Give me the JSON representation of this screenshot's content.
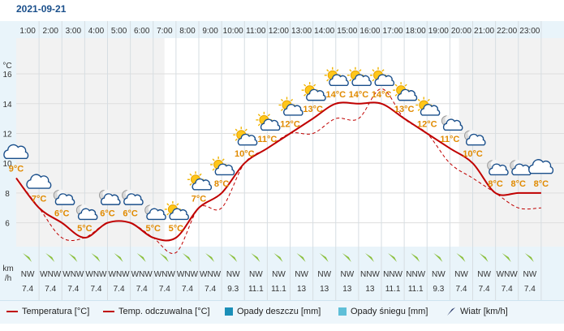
{
  "date": "2021-09-21",
  "colors": {
    "temperature": "#c00000",
    "feels_like": "#c00000",
    "rain": "#1b8fb8",
    "snow": "#5fbfd8",
    "wind": "#223366",
    "night_band": "#f2f2f2",
    "axis_band": "#e9f4fa",
    "temp_label": "#e08a00",
    "arrow": "#8bbf3c"
  },
  "legend": {
    "temperature": "Temperatura [°C]",
    "feels_like": "Temp. odczuwalna [°C]",
    "rain": "Opady deszczu [mm]",
    "snow": "Opady śniegu [mm]",
    "wind": "Wiatr [km/h]"
  },
  "chart_data": {
    "type": "line",
    "ylabel": "°C",
    "yticks": [
      6,
      8,
      10,
      12,
      14,
      16
    ],
    "ylim": [
      4.4,
      18.4
    ],
    "hours": [
      "1:00",
      "2:00",
      "3:00",
      "4:00",
      "5:00",
      "6:00",
      "7:00",
      "8:00",
      "9:00",
      "10:00",
      "11:00",
      "12:00",
      "13:00",
      "14:00",
      "15:00",
      "16:00",
      "17:00",
      "18:00",
      "19:00",
      "20:00",
      "21:00",
      "22:00",
      "23:00"
    ],
    "temperature": [
      9,
      7,
      6,
      5,
      6,
      6,
      5,
      5,
      7,
      8,
      10,
      11,
      12,
      13,
      14,
      14,
      14,
      13,
      12,
      11,
      10,
      8,
      8,
      8
    ],
    "feels_like": [
      9,
      7,
      5,
      5,
      6,
      6,
      5,
      4,
      7,
      7,
      10,
      11,
      12,
      12,
      13,
      13,
      15,
      13,
      12,
      10,
      9,
      8,
      7,
      7
    ],
    "temp_labels": [
      "9°C",
      "7°C",
      "6°C",
      "5°C",
      "6°C",
      "6°C",
      "5°C",
      "5°C",
      "7°C",
      "8°C",
      "10°C",
      "11°C",
      "12°C",
      "13°C",
      "14°C",
      "14°C",
      "14°C",
      "13°C",
      "12°C",
      "11°C",
      "10°C",
      "8°C",
      "8°C",
      "8°C"
    ],
    "sky": [
      "cloud",
      "cloud",
      "night-cloud",
      "night-cloud",
      "night-cloud",
      "night-cloud",
      "night-cloud",
      "sun-cloud",
      "sun-cloud",
      "sun-cloud",
      "sun-cloud",
      "sun-cloud",
      "sun-cloud",
      "sun-cloud",
      "sun-cloud",
      "sun-cloud",
      "sun-cloud",
      "sun-cloud",
      "sun-cloud",
      "night-cloud",
      "night-cloud",
      "night-cloud",
      "night-cloud",
      "cloud"
    ],
    "wind": {
      "unit": "km\n/h",
      "direction": [
        "NW",
        "WNW",
        "WNW",
        "WNW",
        "WNW",
        "WNW",
        "WNW",
        "WNW",
        "WNW",
        "NW",
        "NW",
        "NW",
        "NW",
        "NW",
        "NW",
        "NNW",
        "NNW",
        "NNW",
        "NW",
        "NW",
        "NW",
        "WNW",
        "NW"
      ],
      "speed": [
        "7.4",
        "7.4",
        "7.4",
        "7.4",
        "7.4",
        "7.4",
        "7.4",
        "7.4",
        "7.4",
        "9.3",
        "11.1",
        "11.1",
        "13",
        "13",
        "13",
        "13",
        "11.1",
        "11.1",
        "9.3",
        "7.4",
        "7.4",
        "7.4",
        "7.4"
      ]
    }
  }
}
